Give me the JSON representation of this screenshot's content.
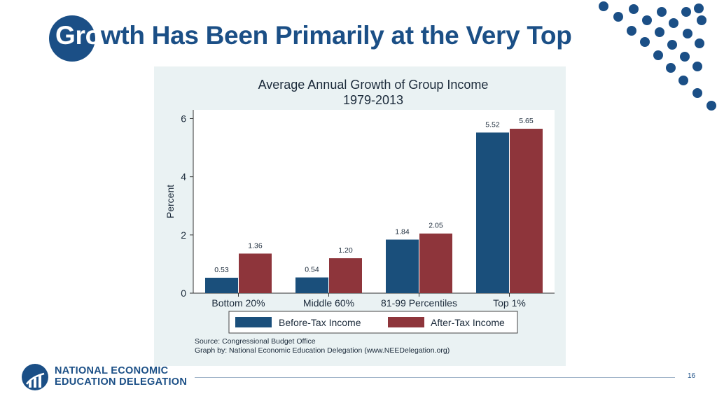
{
  "slide": {
    "title_part_a": "Gro",
    "title_part_b": "wth Has Been Primarily at the Very Top",
    "page_number": "16"
  },
  "org": {
    "line1": "NATIONAL ECONOMIC",
    "line2": "EDUCATION DELEGATION"
  },
  "colors": {
    "brand_blue": "#1b4f86",
    "before_tax": "#1a4f7b",
    "after_tax": "#8e353b",
    "plot_bg": "#ffffff",
    "panel_bg": "#eaf2f3"
  },
  "chart_data": {
    "type": "bar",
    "title": "Average Annual Growth of Group Income",
    "subtitle": "1979-2013",
    "ylabel": "Percent",
    "xlabel": "",
    "ylim": [
      0,
      6.3
    ],
    "yticks": [
      0,
      2,
      4,
      6
    ],
    "categories": [
      "Bottom 20%",
      "Middle 60%",
      "81-99 Percentiles",
      "Top 1%"
    ],
    "series": [
      {
        "name": "Before-Tax Income",
        "color": "#1a4f7b",
        "values": [
          0.53,
          0.54,
          1.84,
          5.52
        ],
        "labels": [
          "0.53",
          "0.54",
          "1.84",
          "5.52"
        ]
      },
      {
        "name": "After-Tax Income",
        "color": "#8e353b",
        "values": [
          1.36,
          1.2,
          2.05,
          5.65
        ],
        "labels": [
          "1.36",
          "1.20",
          "2.05",
          "5.65"
        ]
      }
    ],
    "legend": "bottom",
    "grid": false,
    "notes": [
      "Source: Congressional Budget Office",
      "Graph by: National Economic Education Delegation (www.NEEDelegation.org)"
    ]
  }
}
